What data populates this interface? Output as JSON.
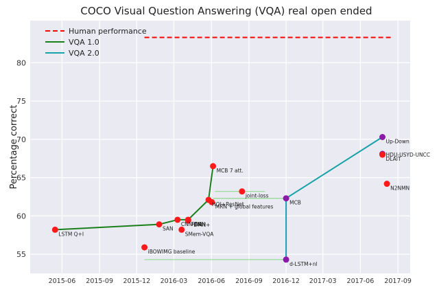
{
  "chart_data": {
    "type": "line",
    "title": "COCO Visual Question Answering (VQA) real open ended",
    "xlabel": "",
    "ylabel": "Percentage correct",
    "x_type": "date",
    "xlim": [
      "2015-03-15",
      "2017-10-01"
    ],
    "ylim": [
      52.5,
      85.5
    ],
    "x_ticks": [
      {
        "date": "2015-06-01",
        "label": "2015-06"
      },
      {
        "date": "2015-09-01",
        "label": "2015-09"
      },
      {
        "date": "2015-12-01",
        "label": "2015-12"
      },
      {
        "date": "2016-03-01",
        "label": "2016-03"
      },
      {
        "date": "2016-06-01",
        "label": "2016-06"
      },
      {
        "date": "2016-09-01",
        "label": "2016-09"
      },
      {
        "date": "2016-12-01",
        "label": "2016-12"
      },
      {
        "date": "2017-03-01",
        "label": "2017-03"
      },
      {
        "date": "2017-06-01",
        "label": "2017-06"
      },
      {
        "date": "2017-09-01",
        "label": "2017-09"
      }
    ],
    "y_ticks": [
      55,
      60,
      65,
      70,
      75,
      80
    ],
    "grid": true,
    "legend_position": "top-left",
    "human_performance": {
      "name": "Human performance",
      "value": 83.3,
      "x_start": "2015-12-20",
      "x_end": "2017-08-15",
      "color": "#ff0000"
    },
    "series": [
      {
        "name": "VQA 1.0",
        "color": "#1a7f1a",
        "points": [
          {
            "x": "2015-05-15",
            "y": 58.2
          },
          {
            "x": "2016-01-25",
            "y": 58.9
          },
          {
            "x": "2016-03-10",
            "y": 59.5
          },
          {
            "x": "2016-04-05",
            "y": 59.5
          },
          {
            "x": "2016-05-25",
            "y": 62.1
          },
          {
            "x": "2016-06-05",
            "y": 66.5
          }
        ]
      },
      {
        "name": "VQA 2.0",
        "color": "#17a2a8",
        "points": [
          {
            "x": "2016-12-01",
            "y": 54.3
          },
          {
            "x": "2016-12-01",
            "y": 62.3
          },
          {
            "x": "2017-07-25",
            "y": 70.3
          }
        ]
      }
    ],
    "points": [
      {
        "label": "LSTM Q+I",
        "x": "2015-05-15",
        "y": 58.2
      },
      {
        "label": "iBOWIMG baseline",
        "x": "2015-12-20",
        "y": 55.9
      },
      {
        "label": "SAN",
        "x": "2016-01-25",
        "y": 58.9
      },
      {
        "label": "CNN-RNN",
        "x": "2016-03-10",
        "y": 59.5
      },
      {
        "label": "SMem-VQA",
        "x": "2016-03-20",
        "y": 58.2
      },
      {
        "label": "FDA",
        "x": "2016-04-05",
        "y": 59.5
      },
      {
        "label": "DMN+",
        "x": "2016-04-05",
        "y": 59.4
      },
      {
        "label": "HQI+ResNet",
        "x": "2016-05-25",
        "y": 62.1
      },
      {
        "label": "MRN + global features",
        "x": "2016-06-02",
        "y": 61.8
      },
      {
        "label": "MCB 7 att.",
        "x": "2016-06-05",
        "y": 66.5
      },
      {
        "label": "joint-loss",
        "x": "2016-08-15",
        "y": 63.2
      },
      {
        "label": "MCB",
        "x": "2016-12-01",
        "y": 62.3
      },
      {
        "label": "d-LSTM+nl",
        "x": "2016-12-01",
        "y": 54.3
      },
      {
        "label": "Up-Down",
        "x": "2017-07-25",
        "y": 70.3
      },
      {
        "label": "HDU-USYD-UNCC",
        "x": "2017-07-25",
        "y": 68.1
      },
      {
        "label": "DLAIT",
        "x": "2017-07-25",
        "y": 68.0
      },
      {
        "label": "N2NMN",
        "x": "2017-08-05",
        "y": 64.2
      }
    ],
    "errorbars": [
      {
        "y": 54.3,
        "x_start": "2015-12-20",
        "x_end": "2016-12-01"
      },
      {
        "y": 62.3,
        "x_start": "2016-06-05",
        "x_end": "2016-12-01"
      },
      {
        "y": 63.2,
        "x_start": "2016-06-10",
        "x_end": "2016-10-10"
      }
    ]
  }
}
